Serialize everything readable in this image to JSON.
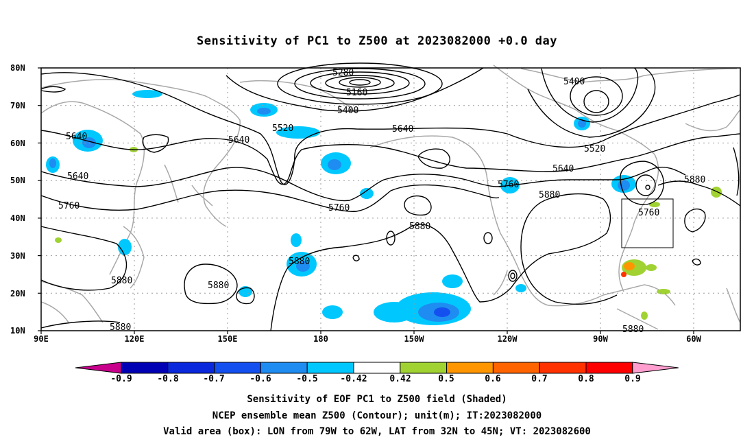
{
  "title": "Sensitivity of PC1 to Z500 at 2023082000 +0.0 day",
  "lat_labels": [
    "80N",
    "70N",
    "60N",
    "50N",
    "40N",
    "30N",
    "20N",
    "10N"
  ],
  "lon_labels": [
    "90E",
    "120E",
    "150E",
    "180",
    "150W",
    "120W",
    "90W",
    "60W"
  ],
  "contour_labels": [
    "5280",
    "5160",
    "5400",
    "5400",
    "5520",
    "5640",
    "5640",
    "5640",
    "5520",
    "5640",
    "5640",
    "5760",
    "5760",
    "5760",
    "5880",
    "5880",
    "5760",
    "5880",
    "5880",
    "5880",
    "5880",
    "5880",
    "5880"
  ],
  "colorbar": {
    "ticks": [
      "-0.9",
      "-0.8",
      "-0.7",
      "-0.6",
      "-0.5",
      "-0.42",
      "0.42",
      "0.5",
      "0.6",
      "0.7",
      "0.8",
      "0.9"
    ],
    "colors": [
      "#c8008c",
      "#0000b4",
      "#0a28dc",
      "#1450f0",
      "#1e8cf0",
      "#00c8ff",
      "#ffffff",
      "#a0d232",
      "#ff9600",
      "#ff6400",
      "#ff3200",
      "#ff0000",
      "#ff9ecf"
    ]
  },
  "footer": {
    "line1": "Sensitivity of EOF PC1 to Z500 field (Shaded)",
    "line2": "NCEP ensemble mean Z500 (Contour); unit(m); IT:2023082000",
    "line3": "Valid area (box): LON from 79W to 62W, LAT from 32N to 45N; VT: 2023082600"
  }
}
